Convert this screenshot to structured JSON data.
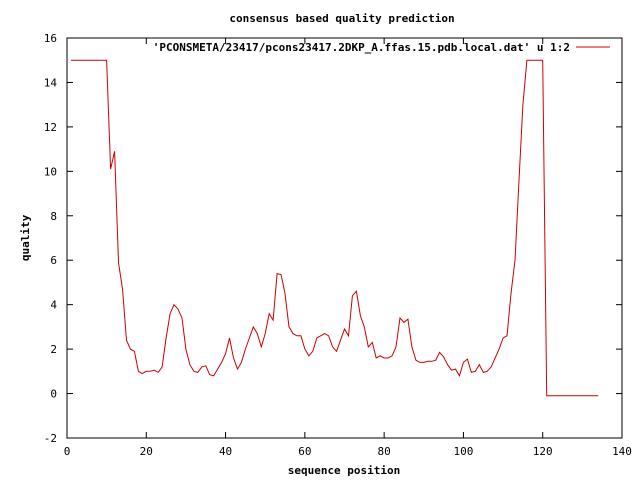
{
  "chart_data": {
    "type": "line",
    "title": "consensus based quality prediction",
    "xlabel": "sequence position",
    "ylabel": "quality",
    "xlim": [
      0,
      140
    ],
    "ylim": [
      -2,
      16
    ],
    "x_ticks": [
      0,
      20,
      40,
      60,
      80,
      100,
      120,
      140
    ],
    "y_ticks": [
      -2,
      0,
      2,
      4,
      6,
      8,
      10,
      12,
      14,
      16
    ],
    "grid": false,
    "legend_position": "top-right",
    "series": [
      {
        "name": "'PCONSMETA/23417/pcons23417.2DKP_A.ffas.15.pdb.local.dat' u 1:2",
        "color": "#cc0000",
        "x": [
          1,
          2,
          3,
          4,
          5,
          6,
          7,
          8,
          9,
          10,
          11,
          12,
          13,
          14,
          15,
          16,
          17,
          18,
          19,
          20,
          21,
          22,
          23,
          24,
          25,
          26,
          27,
          28,
          29,
          30,
          31,
          32,
          33,
          34,
          35,
          36,
          37,
          38,
          39,
          40,
          41,
          42,
          43,
          44,
          45,
          46,
          47,
          48,
          49,
          50,
          51,
          52,
          53,
          54,
          55,
          56,
          57,
          58,
          59,
          60,
          61,
          62,
          63,
          64,
          65,
          66,
          67,
          68,
          69,
          70,
          71,
          72,
          73,
          74,
          75,
          76,
          77,
          78,
          79,
          80,
          81,
          82,
          83,
          84,
          85,
          86,
          87,
          88,
          89,
          90,
          91,
          92,
          93,
          94,
          95,
          96,
          97,
          98,
          99,
          100,
          101,
          102,
          103,
          104,
          105,
          106,
          107,
          108,
          109,
          110,
          111,
          112,
          113,
          114,
          115,
          116,
          117,
          118,
          119,
          120,
          121,
          122,
          123,
          124,
          125,
          126,
          127,
          128,
          129,
          130,
          131,
          132,
          133,
          134
        ],
        "y": [
          15,
          15,
          15,
          15,
          15,
          15,
          15,
          15,
          15,
          15,
          10.1,
          10.9,
          5.9,
          4.7,
          2.4,
          2.0,
          1.9,
          1.0,
          0.9,
          1.0,
          1.0,
          1.05,
          0.95,
          1.2,
          2.5,
          3.6,
          4.0,
          3.8,
          3.4,
          2.0,
          1.3,
          1.0,
          0.95,
          1.2,
          1.25,
          0.85,
          0.8,
          1.1,
          1.4,
          1.8,
          2.5,
          1.6,
          1.1,
          1.4,
          2.0,
          2.5,
          3.0,
          2.7,
          2.1,
          2.7,
          3.6,
          3.3,
          5.4,
          5.35,
          4.5,
          3.0,
          2.7,
          2.6,
          2.6,
          2.0,
          1.7,
          1.9,
          2.5,
          2.6,
          2.7,
          2.6,
          2.1,
          1.9,
          2.4,
          2.9,
          2.6,
          4.4,
          4.6,
          3.5,
          3.0,
          2.1,
          2.3,
          1.6,
          1.7,
          1.6,
          1.6,
          1.7,
          2.1,
          3.4,
          3.2,
          3.35,
          2.1,
          1.5,
          1.4,
          1.4,
          1.45,
          1.45,
          1.5,
          1.85,
          1.65,
          1.3,
          1.05,
          1.1,
          0.8,
          1.4,
          1.55,
          0.95,
          1.0,
          1.3,
          0.95,
          1.0,
          1.2,
          1.6,
          2.0,
          2.5,
          2.6,
          4.5,
          6.0,
          9.5,
          13.0,
          15,
          15,
          15,
          15,
          15,
          -0.1,
          -0.1,
          -0.1,
          -0.1,
          -0.1,
          -0.1,
          -0.1,
          -0.1,
          -0.1,
          -0.1,
          -0.1,
          -0.1,
          -0.1,
          -0.1
        ]
      }
    ]
  }
}
